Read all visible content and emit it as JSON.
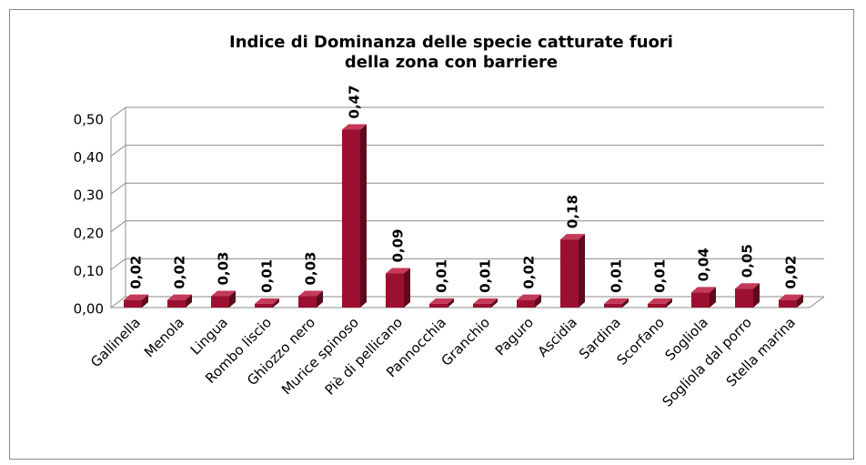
{
  "chart_data": {
    "type": "bar3d",
    "title": "Indice di Dominanza delle specie catturate fuori della zona con barriere",
    "categories": [
      "Gallinella",
      "Menola",
      "Lingua",
      "Rombo liscio",
      "Ghiozzo nero",
      "Murice spinoso",
      "Piè di pellicano",
      "Pannocchia",
      "Granchio",
      "Paguro",
      "Ascidia",
      "Sardina",
      "Scorfano",
      "Sogliola",
      "Sogliola dal porro",
      "Stella marina"
    ],
    "values": [
      0.02,
      0.02,
      0.03,
      0.01,
      0.03,
      0.47,
      0.09,
      0.01,
      0.01,
      0.02,
      0.18,
      0.01,
      0.01,
      0.04,
      0.05,
      0.02
    ],
    "value_labels": [
      "0,02",
      "0,02",
      "0,03",
      "0,01",
      "0,03",
      "0,47",
      "0,09",
      "0,01",
      "0,01",
      "0,02",
      "0,18",
      "0,01",
      "0,01",
      "0,04",
      "0,05",
      "0,02"
    ],
    "color": "#9b1030",
    "ylim": [
      0,
      0.5
    ],
    "yticks": [
      {
        "value": 0,
        "label": "0,00"
      },
      {
        "value": 0.1,
        "label": "0,10"
      },
      {
        "value": 0.2,
        "label": "0,20"
      },
      {
        "value": 0.3,
        "label": "0,30"
      },
      {
        "value": 0.4,
        "label": "0,40"
      },
      {
        "value": 0.5,
        "label": "0,50"
      }
    ],
    "grid": true
  }
}
